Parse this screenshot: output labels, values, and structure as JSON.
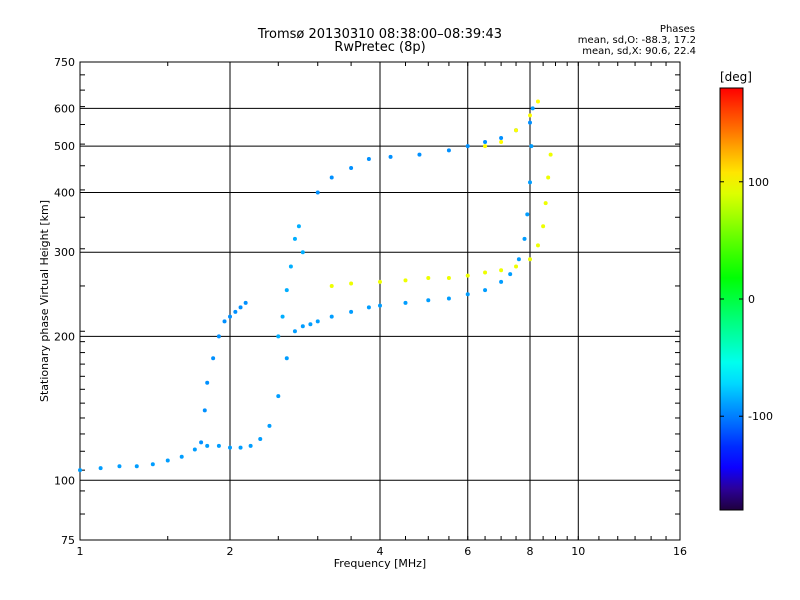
{
  "header": {
    "title_line1": "Tromsø 20130310 08:38:00–08:39:43",
    "title_line2": "RwPretec (8p)",
    "phases_title": "Phases",
    "phases_o": "mean, sd,O: -88.3, 17.2",
    "phases_x": "mean, sd,X:  90.6, 22.4"
  },
  "chart_data": {
    "type": "scatter",
    "title": "Tromsø 20130310 08:38:00–08:39:43",
    "subtitle": "RwPretec (8p)",
    "xlabel": "Frequency [MHz]",
    "ylabel": "Stationary phase Virtual Height [km]",
    "x_scale": "log",
    "y_scale": "log",
    "xlim": [
      1,
      16
    ],
    "ylim": [
      75,
      750
    ],
    "x_ticks": [
      1,
      2,
      4,
      6,
      8,
      10,
      16
    ],
    "x_tick_labels": [
      "1",
      "2",
      "4",
      "6",
      "8",
      "10",
      "16"
    ],
    "y_ticks": [
      75,
      100,
      200,
      300,
      400,
      500,
      600,
      750
    ],
    "y_tick_labels": [
      "75",
      "100",
      "200",
      "300",
      "400",
      "500",
      "600",
      "750"
    ],
    "grid": true,
    "colorbar": {
      "label": "[deg]",
      "range": [
        -180,
        180
      ],
      "ticks": [
        100,
        0,
        -100
      ],
      "tick_labels": [
        "100",
        "0",
        "-100"
      ]
    },
    "colors": {
      "o_trace": "#1e40ff",
      "x_trace": "#ffd700",
      "x_trace_alt": "#ff8c00"
    },
    "series": [
      {
        "mode": "O",
        "phase_deg": -90,
        "x": [
          1.0,
          1.1,
          1.2,
          1.3,
          1.4,
          1.5,
          1.6,
          1.7,
          1.8,
          1.9,
          2.0,
          2.1,
          2.2,
          2.3,
          2.4,
          2.5,
          2.6,
          2.7,
          2.8,
          2.9,
          3.0,
          3.2,
          3.5,
          3.8,
          4.0,
          4.5,
          5.0,
          5.5,
          6.0,
          6.5,
          7.0,
          7.3,
          7.6,
          7.8,
          7.9,
          8.0,
          8.05,
          8.1
        ],
        "y": [
          105,
          106,
          107,
          107,
          108,
          110,
          112,
          116,
          118,
          118,
          117,
          117,
          118,
          122,
          130,
          150,
          180,
          205,
          210,
          212,
          215,
          220,
          225,
          230,
          232,
          235,
          238,
          240,
          245,
          250,
          260,
          270,
          290,
          320,
          360,
          420,
          500,
          600
        ]
      },
      {
        "mode": "O",
        "phase_deg": -95,
        "x": [
          1.75,
          1.78,
          1.8,
          1.85,
          1.9,
          1.95,
          2.0,
          2.05,
          2.1,
          2.15
        ],
        "y": [
          120,
          140,
          160,
          180,
          200,
          215,
          220,
          225,
          230,
          235
        ]
      },
      {
        "mode": "O",
        "phase_deg": -85,
        "x": [
          2.5,
          2.55,
          2.6,
          2.65,
          2.7,
          2.75,
          2.8
        ],
        "y": [
          200,
          220,
          250,
          280,
          320,
          340,
          300
        ]
      },
      {
        "mode": "X",
        "phase_deg": 95,
        "x": [
          3.2,
          3.5,
          4.0,
          4.5,
          5.0,
          5.5,
          6.0,
          6.5,
          7.0,
          7.5,
          8.0,
          8.3,
          8.5,
          8.6,
          8.7,
          8.8
        ],
        "y": [
          255,
          258,
          260,
          262,
          265,
          265,
          268,
          272,
          275,
          280,
          290,
          310,
          340,
          380,
          430,
          480
        ]
      },
      {
        "mode": "O",
        "phase_deg": -95,
        "x": [
          3.0,
          3.2,
          3.5,
          3.8,
          4.2,
          4.8,
          5.5,
          6.0,
          6.5,
          7.0,
          7.5,
          8.0
        ],
        "y": [
          400,
          430,
          450,
          470,
          475,
          480,
          490,
          500,
          510,
          520,
          540,
          560
        ]
      },
      {
        "mode": "X",
        "phase_deg": 100,
        "x": [
          6.5,
          7.0,
          7.5,
          8.0,
          8.3
        ],
        "y": [
          500,
          510,
          540,
          580,
          620
        ]
      }
    ]
  }
}
